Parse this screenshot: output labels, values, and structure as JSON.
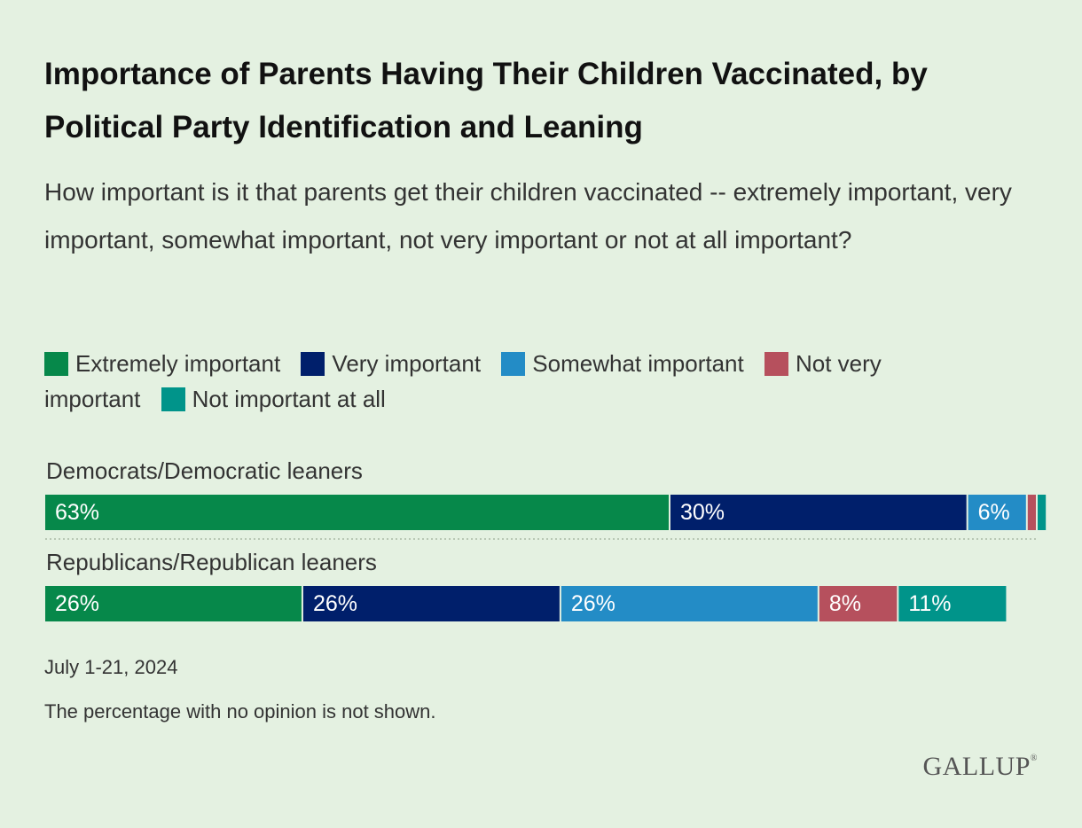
{
  "title": "Importance of Parents Having Their Children Vaccinated, by Political Party Identification and Leaning",
  "subtitle": "How important is it that parents get their children vaccinated -- extremely important, very important, somewhat important, not very important or not at all important?",
  "footer": {
    "date": "July 1-21, 2024",
    "note": "The percentage with no opinion is not shown."
  },
  "logo": "GALLUP",
  "logo_mark": "®",
  "chart_data": {
    "type": "bar",
    "orientation": "horizontal",
    "stacked": true,
    "xlim": [
      0,
      100
    ],
    "legend_position": "top",
    "grid": false,
    "categories": [
      "Democrats/Democratic leaners",
      "Republicans/Republican leaners"
    ],
    "series": [
      {
        "name": "Extremely important",
        "color": "#06884a",
        "values": [
          63,
          26
        ],
        "labels": [
          "63%",
          "26%"
        ]
      },
      {
        "name": "Very important",
        "color": "#001f6b",
        "values": [
          30,
          26
        ],
        "labels": [
          "30%",
          "26%"
        ]
      },
      {
        "name": "Somewhat important",
        "color": "#238cc6",
        "values": [
          6,
          26
        ],
        "labels": [
          "6%",
          "26%"
        ]
      },
      {
        "name": "Not very important",
        "color": "#b6505d",
        "values": [
          1,
          8
        ],
        "labels": [
          "",
          "8%"
        ]
      },
      {
        "name": "Not important at all",
        "color": "#00948a",
        "values": [
          1,
          11
        ],
        "labels": [
          "",
          "11%"
        ]
      }
    ]
  }
}
